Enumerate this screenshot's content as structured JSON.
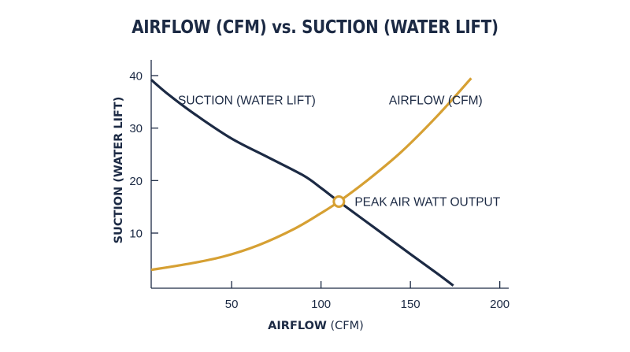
{
  "chart_data": {
    "type": "line",
    "title": "AIRFLOW (CFM) vs. SUCTION (WATER LIFT)",
    "xlabel": {
      "bold": "AIRFLOW",
      "normal": "(CFM)"
    },
    "ylabel": "SUCTION (WATER LIFT)",
    "xlim": [
      5,
      205
    ],
    "ylim": [
      -0.5,
      43
    ],
    "xticks": [
      50,
      100,
      150,
      200
    ],
    "yticks": [
      10,
      20,
      30,
      40
    ],
    "grid": false,
    "colors": {
      "text": "#1c2a44",
      "suction": "#1c2a44",
      "airflow": "#d6a033",
      "axis": "#1c2a44"
    },
    "series": [
      {
        "name": "SUCTION (WATER LIFT)",
        "color": "#1c2a44",
        "x": [
          5,
          15,
          30,
          50,
          70,
          90,
          100,
          110,
          130,
          150,
          165,
          174
        ],
        "y": [
          39.2,
          36.3,
          32.5,
          28.0,
          24.5,
          21.0,
          18.6,
          16.0,
          11.0,
          6.0,
          2.3,
          0
        ]
      },
      {
        "name": "AIRFLOW (CFM)",
        "color": "#d6a033",
        "x": [
          5,
          25,
          45,
          65,
          85,
          100,
          110,
          125,
          145,
          165,
          184
        ],
        "y": [
          3.0,
          4.1,
          5.5,
          7.7,
          10.8,
          13.8,
          16.0,
          19.8,
          25.5,
          32.3,
          39.5
        ]
      }
    ],
    "series_labels": [
      {
        "text": "SUCTION (WATER LIFT)",
        "x": 20,
        "y": 35.3
      },
      {
        "text": "AIRFLOW (CFM)",
        "x": 138,
        "y": 35.3
      }
    ],
    "annotations": [
      {
        "text": "PEAK AIR WATT OUTPUT",
        "x": 110,
        "y": 16.0
      }
    ]
  }
}
